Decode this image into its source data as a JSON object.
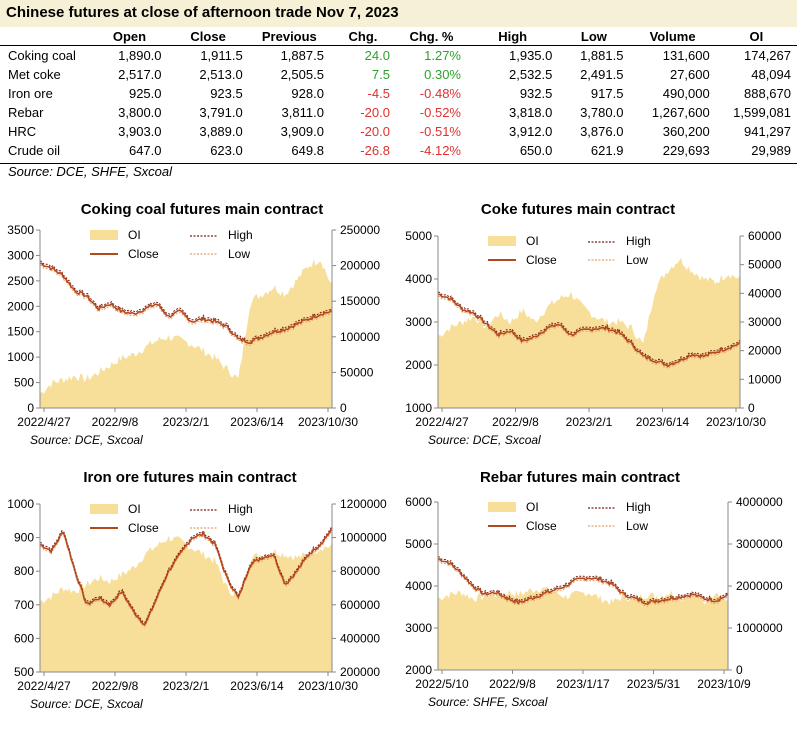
{
  "header": {
    "title": "Chinese futures at close of afternoon trade Nov 7, 2023",
    "columns": [
      "",
      "Open",
      "Close",
      "Previous",
      "Chg.",
      "Chg. %",
      "High",
      "Low",
      "Volume",
      "OI"
    ]
  },
  "table": {
    "rows": [
      {
        "name": "Coking coal",
        "cells": [
          "1,890.0",
          "1,911.5",
          "1,887.5",
          "24.0",
          "1.27%",
          "1,935.0",
          "1,881.5",
          "131,600",
          "174,267"
        ],
        "dir": "up"
      },
      {
        "name": "Met coke",
        "cells": [
          "2,517.0",
          "2,513.0",
          "2,505.5",
          "7.5",
          "0.30%",
          "2,532.5",
          "2,491.5",
          "27,600",
          "48,094"
        ],
        "dir": "up"
      },
      {
        "name": "Iron ore",
        "cells": [
          "925.0",
          "923.5",
          "928.0",
          "-4.5",
          "-0.48%",
          "932.5",
          "917.5",
          "490,000",
          "888,670"
        ],
        "dir": "down"
      },
      {
        "name": "Rebar",
        "cells": [
          "3,800.0",
          "3,791.0",
          "3,811.0",
          "-20.0",
          "-0.52%",
          "3,818.0",
          "3,780.0",
          "1,267,600",
          "1,599,081"
        ],
        "dir": "down"
      },
      {
        "name": "HRC",
        "cells": [
          "3,903.0",
          "3,889.0",
          "3,909.0",
          "-20.0",
          "-0.51%",
          "3,912.0",
          "3,876.0",
          "360,200",
          "941,297"
        ],
        "dir": "down"
      },
      {
        "name": "Crude oil",
        "cells": [
          "647.0",
          "623.0",
          "649.8",
          "-26.8",
          "-4.12%",
          "650.0",
          "621.9",
          "229,693",
          "29,989"
        ],
        "dir": "down"
      }
    ],
    "source": "Source: DCE, SHFE, Sxcoal"
  },
  "colors": {
    "up": "#2fa02f",
    "down": "#e03030",
    "oi_fill": "#f7df9a",
    "close": "#b5471c",
    "high": "#7a1f12",
    "low": "#e8a06a",
    "title_bg": "#f5f0d6"
  },
  "legend_labels": {
    "oi": "OI",
    "high": "High",
    "close": "Close",
    "low": "Low"
  },
  "chart_data": [
    {
      "type": "line",
      "title": "Coking coal futures main contract",
      "source": "Source: DCE, Sxcoal",
      "x_ticks": [
        "2022/4/27",
        "2022/9/8",
        "2023/2/1",
        "2023/6/14",
        "2023/10/30"
      ],
      "y_left": {
        "min": 0,
        "max": 3500,
        "ticks": [
          0,
          500,
          1000,
          1500,
          2000,
          2500,
          3000,
          3500
        ]
      },
      "y_right": {
        "min": 0,
        "max": 250000,
        "ticks": [
          0,
          50000,
          100000,
          150000,
          200000,
          250000
        ]
      },
      "series": [
        {
          "name": "Close",
          "values": [
            2850,
            2750,
            2600,
            2300,
            2200,
            1950,
            2050,
            1900,
            1850,
            1950,
            2050,
            1800,
            1900,
            1700,
            1750,
            1700,
            1600,
            1350,
            1300,
            1400,
            1500,
            1550,
            1650,
            1750,
            1850,
            1900
          ]
        },
        {
          "name": "OI",
          "axis": "right",
          "values": [
            20000,
            35000,
            40000,
            45000,
            40000,
            50000,
            60000,
            70000,
            75000,
            85000,
            95000,
            100000,
            95000,
            90000,
            80000,
            70000,
            55000,
            40000,
            150000,
            160000,
            170000,
            160000,
            180000,
            200000,
            210000,
            170000
          ]
        }
      ]
    },
    {
      "type": "line",
      "title": "Coke futures main contract",
      "source": "Source: DCE, Sxcoal",
      "x_ticks": [
        "2022/4/27",
        "2022/9/8",
        "2023/2/1",
        "2023/6/14",
        "2023/10/30"
      ],
      "y_left": {
        "min": 1000,
        "max": 5000,
        "ticks": [
          1000,
          2000,
          3000,
          4000,
          5000
        ]
      },
      "y_right": {
        "min": 0,
        "max": 60000,
        "ticks": [
          0,
          10000,
          20000,
          30000,
          40000,
          50000,
          60000
        ]
      },
      "series": [
        {
          "name": "Close",
          "values": [
            3650,
            3550,
            3300,
            3200,
            2950,
            2700,
            2800,
            2550,
            2650,
            2850,
            2950,
            2700,
            2800,
            2850,
            2850,
            2750,
            2500,
            2200,
            2100,
            2000,
            2100,
            2250,
            2200,
            2300,
            2400,
            2500
          ]
        },
        {
          "name": "OI",
          "axis": "right",
          "values": [
            25000,
            28000,
            30000,
            32000,
            28000,
            33000,
            30000,
            34000,
            30000,
            35000,
            38000,
            40000,
            35000,
            32000,
            30000,
            30000,
            28000,
            22000,
            42000,
            48000,
            52000,
            48000,
            45000,
            44000,
            47000,
            45000
          ]
        }
      ]
    },
    {
      "type": "line",
      "title": "Iron ore futures main contract",
      "source": "Source: DCE, Sxcoal",
      "x_ticks": [
        "2022/4/27",
        "2022/9/8",
        "2023/2/1",
        "2023/6/14",
        "2023/10/30"
      ],
      "y_left": {
        "min": 500,
        "max": 1000,
        "ticks": [
          500,
          600,
          700,
          800,
          900,
          1000
        ]
      },
      "y_right": {
        "min": 200000,
        "max": 1200000,
        "ticks": [
          200000,
          400000,
          600000,
          800000,
          1000000,
          1200000
        ]
      },
      "series": [
        {
          "name": "Close",
          "values": [
            880,
            860,
            920,
            800,
            700,
            720,
            700,
            740,
            680,
            640,
            720,
            800,
            850,
            900,
            910,
            880,
            780,
            720,
            820,
            840,
            850,
            760,
            800,
            850,
            880,
            925
          ]
        },
        {
          "name": "OI",
          "axis": "right",
          "values": [
            620000,
            650000,
            700000,
            680000,
            720000,
            760000,
            740000,
            780000,
            820000,
            900000,
            950000,
            1000000,
            980000,
            940000,
            900000,
            860000,
            700000,
            640000,
            880000,
            900000,
            920000,
            900000,
            880000,
            900000,
            940000,
            950000
          ]
        }
      ]
    },
    {
      "type": "line",
      "title": "Rebar futures main contract",
      "source": "Source: SHFE, Sxcoal",
      "x_ticks": [
        "2022/5/10",
        "2022/9/8",
        "2023/1/17",
        "2023/5/31",
        "2023/10/9"
      ],
      "y_left": {
        "min": 2000,
        "max": 6000,
        "ticks": [
          2000,
          3000,
          4000,
          5000,
          6000
        ]
      },
      "y_right": {
        "min": 0,
        "max": 4000000,
        "ticks": [
          0,
          1000000,
          2000000,
          3000000,
          4000000
        ]
      },
      "series": [
        {
          "name": "Close",
          "values": [
            4650,
            4550,
            4300,
            4000,
            3800,
            3850,
            3700,
            3600,
            3700,
            3800,
            3900,
            4000,
            4150,
            4200,
            4150,
            4050,
            3800,
            3700,
            3600,
            3650,
            3700,
            3750,
            3800,
            3700,
            3650,
            3791
          ]
        },
        {
          "name": "OI",
          "axis": "right",
          "values": [
            1700000,
            1800000,
            1850000,
            1700000,
            1750000,
            1800000,
            1850000,
            1800000,
            1900000,
            1950000,
            1850000,
            1750000,
            1800000,
            1850000,
            1700000,
            1600000,
            1750000,
            1700000,
            1800000,
            1750000,
            1850000,
            1700000,
            1800000,
            1600000,
            1900000,
            1600000
          ]
        }
      ]
    }
  ]
}
